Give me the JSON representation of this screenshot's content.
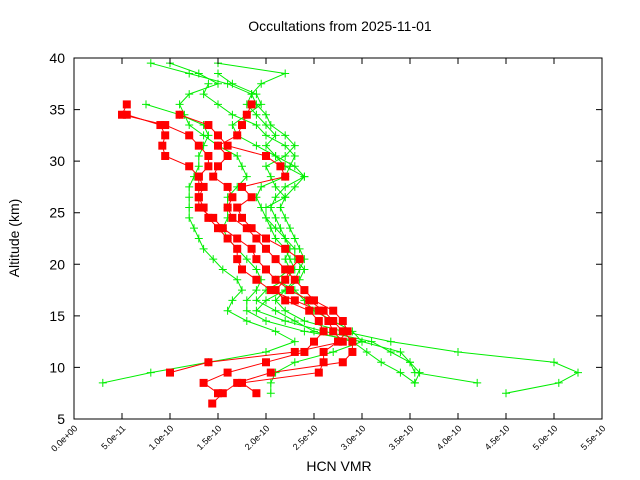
{
  "chart_data": {
    "type": "line",
    "title": "Occultations from 2025-11-01",
    "xlabel": "HCN VMR",
    "ylabel": "Altitude (km)",
    "xlim": [
      0,
      5.5e-10
    ],
    "ylim": [
      5,
      40
    ],
    "x_ticks": [
      0,
      5e-11,
      1e-10,
      1.5e-10,
      2e-10,
      2.5e-10,
      3e-10,
      3.5e-10,
      4e-10,
      4.5e-10,
      5e-10,
      5.5e-10
    ],
    "x_tick_labels": [
      "0.0e+00",
      "5.0e-11",
      "1.0e-10",
      "1.5e-10",
      "2.0e-10",
      "2.5e-10",
      "3.0e-10",
      "3.5e-10",
      "4.0e-10",
      "4.5e-10",
      "5.0e-10",
      "5.5e-10"
    ],
    "y_ticks": [
      5,
      10,
      15,
      20,
      25,
      30,
      35,
      40
    ],
    "y_tick_labels": [
      "5",
      "10",
      "15",
      "20",
      "25",
      "30",
      "35",
      "40"
    ],
    "grid": false,
    "colors": {
      "green": "#00ee00",
      "red": "#ff0000"
    },
    "series": [
      {
        "color": "#00ee00",
        "marker": "plus",
        "y": [
          39.5,
          38.5,
          37.5,
          36.5,
          35.5,
          34.5,
          33.5,
          32.5,
          31.5,
          30.5,
          29.5,
          28.5,
          27.5,
          26.5,
          25.5,
          24.5,
          23.5,
          22.5,
          21.5,
          20.5,
          19.5,
          18.5,
          17.5,
          16.5,
          15.5,
          14.5,
          13.5,
          12.5,
          11.5,
          10.5,
          9.5,
          8.5,
          7.5
        ],
        "x": [
          8e-11,
          1.2e-10,
          1.6e-10,
          1.85e-10,
          1.8e-10,
          1.9e-10,
          2e-10,
          2.1e-10,
          2e-10,
          2.1e-10,
          2.2e-10,
          2.4e-10,
          2.3e-10,
          2.2e-10,
          2.15e-10,
          2.2e-10,
          2.25e-10,
          2.3e-10,
          2.35e-10,
          2.4e-10,
          2.35e-10,
          2.3e-10,
          2.2e-10,
          2.1e-10,
          2.2e-10,
          2.4e-10,
          2.8e-10,
          3.3e-10,
          4e-10,
          5e-10,
          5.25e-10,
          5.05e-10,
          4.5e-10
        ]
      },
      {
        "color": "#00ee00",
        "marker": "plus",
        "y": [
          39.5,
          38.5,
          37.5,
          36.5,
          35.5,
          34.5,
          33.5,
          32.5,
          31.5,
          30.5,
          29.5,
          28.5,
          27.5,
          26.5,
          25.5,
          24.5,
          23.5,
          22.5,
          21.5,
          20.5,
          19.5,
          18.5,
          17.5,
          16.5,
          15.5,
          14.5,
          13.5,
          12.5,
          11.5,
          10.5,
          9.5,
          8.5
        ],
        "x": [
          1e-10,
          1.3e-10,
          1.5e-10,
          1.2e-10,
          1.1e-10,
          1.15e-10,
          1.2e-10,
          1.35e-10,
          1.5e-10,
          1.7e-10,
          1.75e-10,
          1.8e-10,
          1.7e-10,
          1.6e-10,
          1.6e-10,
          1.6e-10,
          1.55e-10,
          1.6e-10,
          1.7e-10,
          1.8e-10,
          1.9e-10,
          1.95e-10,
          1.9e-10,
          1.8e-10,
          1.8e-10,
          2e-10,
          2.4e-10,
          3e-10,
          3.4e-10,
          3.5e-10,
          3.6e-10,
          3.55e-10
        ]
      },
      {
        "color": "#00ee00",
        "marker": "plus",
        "y": [
          38.5,
          37.5,
          36.5,
          35.5,
          34.5,
          33.5,
          32.5,
          31.5,
          30.5,
          29.5,
          28.5,
          27.5,
          26.5,
          25.5,
          24.5,
          23.5,
          22.5,
          21.5,
          20.5,
          19.5,
          18.5,
          17.5,
          16.5,
          15.5,
          14.5,
          13.5,
          12.5,
          11.5,
          10.5,
          9.5,
          8.5
        ],
        "x": [
          1.5e-10,
          1.65e-10,
          1.9e-10,
          1.95e-10,
          1.8e-10,
          1.65e-10,
          1.7e-10,
          1.9e-10,
          2.1e-10,
          2.3e-10,
          2.4e-10,
          2.2e-10,
          2.1e-10,
          2.05e-10,
          2.1e-10,
          2.15e-10,
          2.2e-10,
          2.3e-10,
          2.3e-10,
          2.4e-10,
          2.35e-10,
          2.2e-10,
          2e-10,
          1.9e-10,
          2.2e-10,
          2.6e-10,
          3.1e-10,
          3.3e-10,
          3.5e-10,
          3.55e-10,
          4.2e-10
        ]
      },
      {
        "color": "#00ee00",
        "marker": "plus",
        "y": [
          35.5,
          34.5,
          33.5,
          32.5,
          31.5,
          30.5,
          29.5,
          28.5,
          27.5,
          26.5,
          25.5,
          24.5,
          23.5,
          22.5,
          21.5,
          20.5,
          19.5,
          18.5,
          17.5,
          16.5,
          15.5,
          14.5,
          13.5,
          12.5,
          11.5,
          10.5,
          9.5,
          8.5
        ],
        "x": [
          7.5e-11,
          1.1e-10,
          1.35e-10,
          1.4e-10,
          1.35e-10,
          1.3e-10,
          1.3e-10,
          1.25e-10,
          1.2e-10,
          1.2e-10,
          1.2e-10,
          1.2e-10,
          1.25e-10,
          1.3e-10,
          1.35e-10,
          1.45e-10,
          1.55e-10,
          1.7e-10,
          1.75e-10,
          1.65e-10,
          1.6e-10,
          1.8e-10,
          2.1e-10,
          2.3e-10,
          2e-10,
          1.4e-10,
          8e-11,
          3e-11
        ]
      },
      {
        "color": "#00ee00",
        "marker": "plus",
        "y": [
          39.5,
          38.5,
          37.5,
          36.5,
          35.5,
          34.5,
          33.5,
          32.5,
          31.5,
          30.5,
          29.5,
          28.5,
          27.5,
          26.5,
          25.5,
          24.5,
          23.5,
          22.5,
          21.5,
          20.5,
          19.5,
          18.5,
          17.5,
          16.5,
          15.5,
          14.5,
          13.5,
          12.5,
          11.5,
          10.5,
          9.5,
          8.5,
          7.5
        ],
        "x": [
          1.5e-10,
          2.2e-10,
          1.95e-10,
          1.85e-10,
          1.9e-10,
          2e-10,
          2.05e-10,
          2.2e-10,
          2.3e-10,
          2.2e-10,
          2e-10,
          2.05e-10,
          2.1e-10,
          2.2e-10,
          2e-10,
          2e-10,
          2.1e-10,
          2.2e-10,
          2.25e-10,
          2.2e-10,
          2.25e-10,
          2.1e-10,
          2.3e-10,
          2.4e-10,
          2.5e-10,
          2.7e-10,
          2.9e-10,
          3e-10,
          2.7e-10,
          2.3e-10,
          2.1e-10,
          2.05e-10,
          2.05e-10
        ]
      },
      {
        "color": "#00ee00",
        "marker": "plus",
        "y": [
          37.5,
          36.5,
          35.5,
          34.5,
          33.5,
          32.5,
          31.5,
          30.5,
          29.5,
          28.5,
          27.5,
          26.5,
          25.5,
          24.5,
          23.5,
          22.5,
          21.5,
          20.5,
          19.5,
          18.5,
          17.5,
          16.5,
          15.5,
          14.5,
          13.5,
          12.5,
          11.5,
          10.5,
          9.5,
          8.5
        ],
        "x": [
          1.4e-10,
          1.35e-10,
          1.5e-10,
          1.65e-10,
          1.9e-10,
          2e-10,
          2.2e-10,
          2.3e-10,
          2.25e-10,
          2.2e-10,
          1.95e-10,
          1.9e-10,
          1.95e-10,
          2e-10,
          2.05e-10,
          2.1e-10,
          2.2e-10,
          2.25e-10,
          2.3e-10,
          2.2e-10,
          2e-10,
          1.9e-10,
          2.1e-10,
          2.3e-10,
          2.5e-10,
          2.9e-10,
          3.05e-10,
          3.2e-10,
          3.4e-10,
          3.55e-10
        ]
      },
      {
        "color": "#ff0000",
        "marker": "square",
        "y": [
          35.5,
          34.5,
          33.5,
          32.5,
          31.5,
          30.5,
          29.5,
          28.5,
          27.5,
          26.5,
          25.5,
          24.5,
          23.5,
          22.5,
          21.5,
          20.5,
          19.5,
          18.5,
          17.5,
          16.5,
          15.5,
          14.5,
          13.5,
          12.5,
          11.5,
          10.5,
          9.5
        ],
        "x": [
          5.5e-11,
          5e-11,
          9.5e-11,
          1.2e-10,
          1.3e-10,
          1.4e-10,
          1.4e-10,
          1.3e-10,
          1.3e-10,
          1.3e-10,
          1.35e-10,
          1.4e-10,
          1.5e-10,
          1.6e-10,
          1.7e-10,
          1.7e-10,
          1.75e-10,
          1.9e-10,
          2.05e-10,
          2.3e-10,
          2.55e-10,
          2.65e-10,
          2.7e-10,
          2.8e-10,
          2.3e-10,
          1.4e-10,
          1e-10
        ]
      },
      {
        "color": "#ff0000",
        "marker": "square",
        "y": [
          34.5,
          33.5,
          32.5,
          31.5,
          30.5,
          29.5,
          28.5,
          27.5,
          26.5,
          25.5,
          24.5,
          23.5,
          22.5,
          21.5,
          20.5,
          19.5,
          18.5,
          17.5,
          16.5,
          15.5,
          14.5,
          13.5,
          12.5,
          11.5,
          10.5,
          9.5,
          8.5,
          7.5,
          6.5
        ],
        "x": [
          5.5e-11,
          9e-11,
          9.5e-11,
          9.2e-11,
          9.5e-11,
          1.2e-10,
          1.3e-10,
          1.35e-10,
          1.3e-10,
          1.3e-10,
          1.45e-10,
          1.55e-10,
          1.7e-10,
          1.85e-10,
          1.9e-10,
          2e-10,
          2.1e-10,
          2.25e-10,
          2.45e-10,
          2.6e-10,
          2.7e-10,
          2.8e-10,
          2.9e-10,
          2.9e-10,
          2.8e-10,
          2.05e-10,
          1.7e-10,
          1.55e-10,
          1.44e-10
        ]
      },
      {
        "color": "#ff0000",
        "marker": "square",
        "y": [
          35.5,
          34.5,
          33.5,
          32.5,
          31.5,
          30.5,
          29.5,
          28.5,
          27.5,
          26.5,
          25.5,
          24.5,
          23.5,
          22.5,
          21.5,
          20.5,
          19.5,
          18.5,
          17.5,
          16.5,
          15.5,
          14.5,
          13.5,
          12.5,
          11.5,
          10.5,
          9.5,
          8.5,
          7.5
        ],
        "x": [
          1.85e-10,
          1.8e-10,
          1.75e-10,
          1.7e-10,
          1.5e-10,
          1.6e-10,
          1.5e-10,
          1.45e-10,
          1.6e-10,
          1.65e-10,
          1.6e-10,
          1.65e-10,
          1.8e-10,
          1.9e-10,
          2e-10,
          2.1e-10,
          2.2e-10,
          2.3e-10,
          2.4e-10,
          2.5e-10,
          2.7e-10,
          2.8e-10,
          2.85e-10,
          2.75e-10,
          2.6e-10,
          2.6e-10,
          2.55e-10,
          1.75e-10,
          1.9e-10
        ]
      },
      {
        "color": "#ff0000",
        "marker": "square",
        "y": [
          34.5,
          33.5,
          32.5,
          31.5,
          30.5,
          29.5,
          28.5,
          27.5,
          26.5,
          25.5,
          24.5,
          23.5,
          22.5,
          21.5,
          20.5,
          19.5,
          18.5,
          17.5,
          16.5,
          15.5,
          14.5,
          13.5,
          12.5,
          11.5,
          10.5,
          9.5,
          8.5,
          7.5
        ],
        "x": [
          1.1e-10,
          1.4e-10,
          1.5e-10,
          1.6e-10,
          2e-10,
          2.15e-10,
          2.2e-10,
          1.75e-10,
          1.85e-10,
          1.7e-10,
          1.75e-10,
          1.85e-10,
          2e-10,
          2.2e-10,
          2.35e-10,
          2.25e-10,
          2.2e-10,
          2.1e-10,
          2.2e-10,
          2.45e-10,
          2.55e-10,
          2.6e-10,
          2.5e-10,
          2.4e-10,
          2e-10,
          1.6e-10,
          1.35e-10,
          1.5e-10
        ]
      }
    ]
  }
}
